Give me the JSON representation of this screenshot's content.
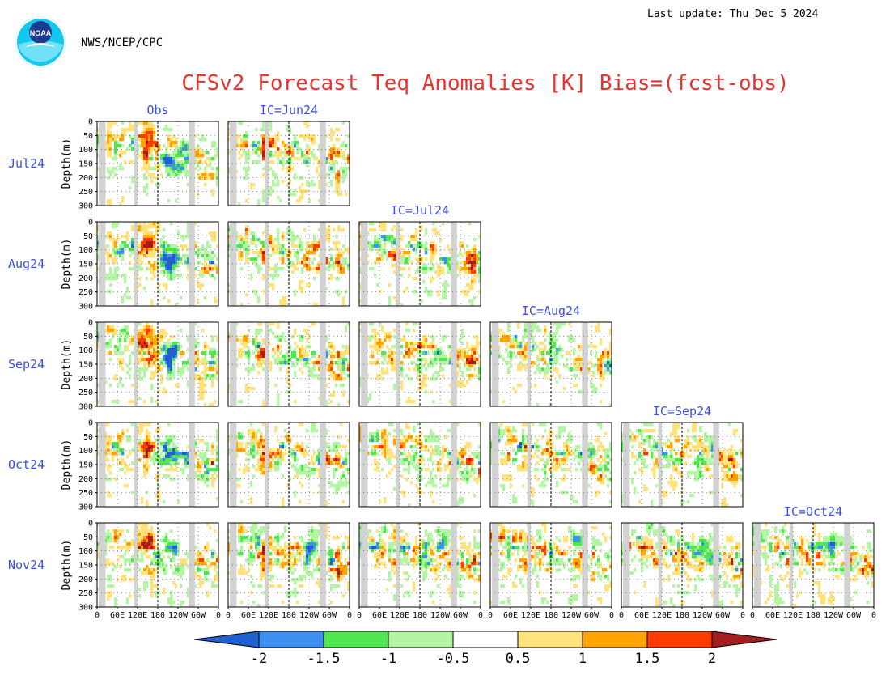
{
  "header": {
    "last_update": "Last update: Thu Dec 5 2024",
    "org": "NWS/NCEP/CPC",
    "logo_text": "NOAA",
    "title": "CFSv2 Forecast Teq Anomalies [K] Bias=(fcst-obs)"
  },
  "chart_data": {
    "type": "heatmap",
    "title": "CFSv2 Forecast Teq Anomalies [K] Bias=(fcst-obs)",
    "ylabel": "Depth(m)",
    "ylim": [
      300,
      0
    ],
    "yticks": [
      "0",
      "50",
      "100",
      "150",
      "200",
      "250",
      "300"
    ],
    "xticks": [
      "0",
      "60E",
      "120E",
      "180",
      "120W",
      "60W",
      "0"
    ],
    "column_labels": [
      "Obs",
      "IC=Jun24",
      "IC=Jul24",
      "IC=Aug24",
      "IC=Sep24",
      "IC=Oct24"
    ],
    "row_labels": [
      "Jul24",
      "Aug24",
      "Sep24",
      "Oct24",
      "Nov24"
    ],
    "colorbar": {
      "levels": [
        "-2",
        "-1.5",
        "-1",
        "-0.5",
        "0.5",
        "1",
        "1.5",
        "2"
      ],
      "colors": [
        "#1f5fd0",
        "#3d8ff0",
        "#4fe64f",
        "#b4f5a4",
        "#ffffff",
        "#ffe27a",
        "#ffa400",
        "#ff3c00",
        "#a31e1e"
      ]
    },
    "land_mask_color": "#d2d2d2",
    "dateline_style": "dashed"
  }
}
